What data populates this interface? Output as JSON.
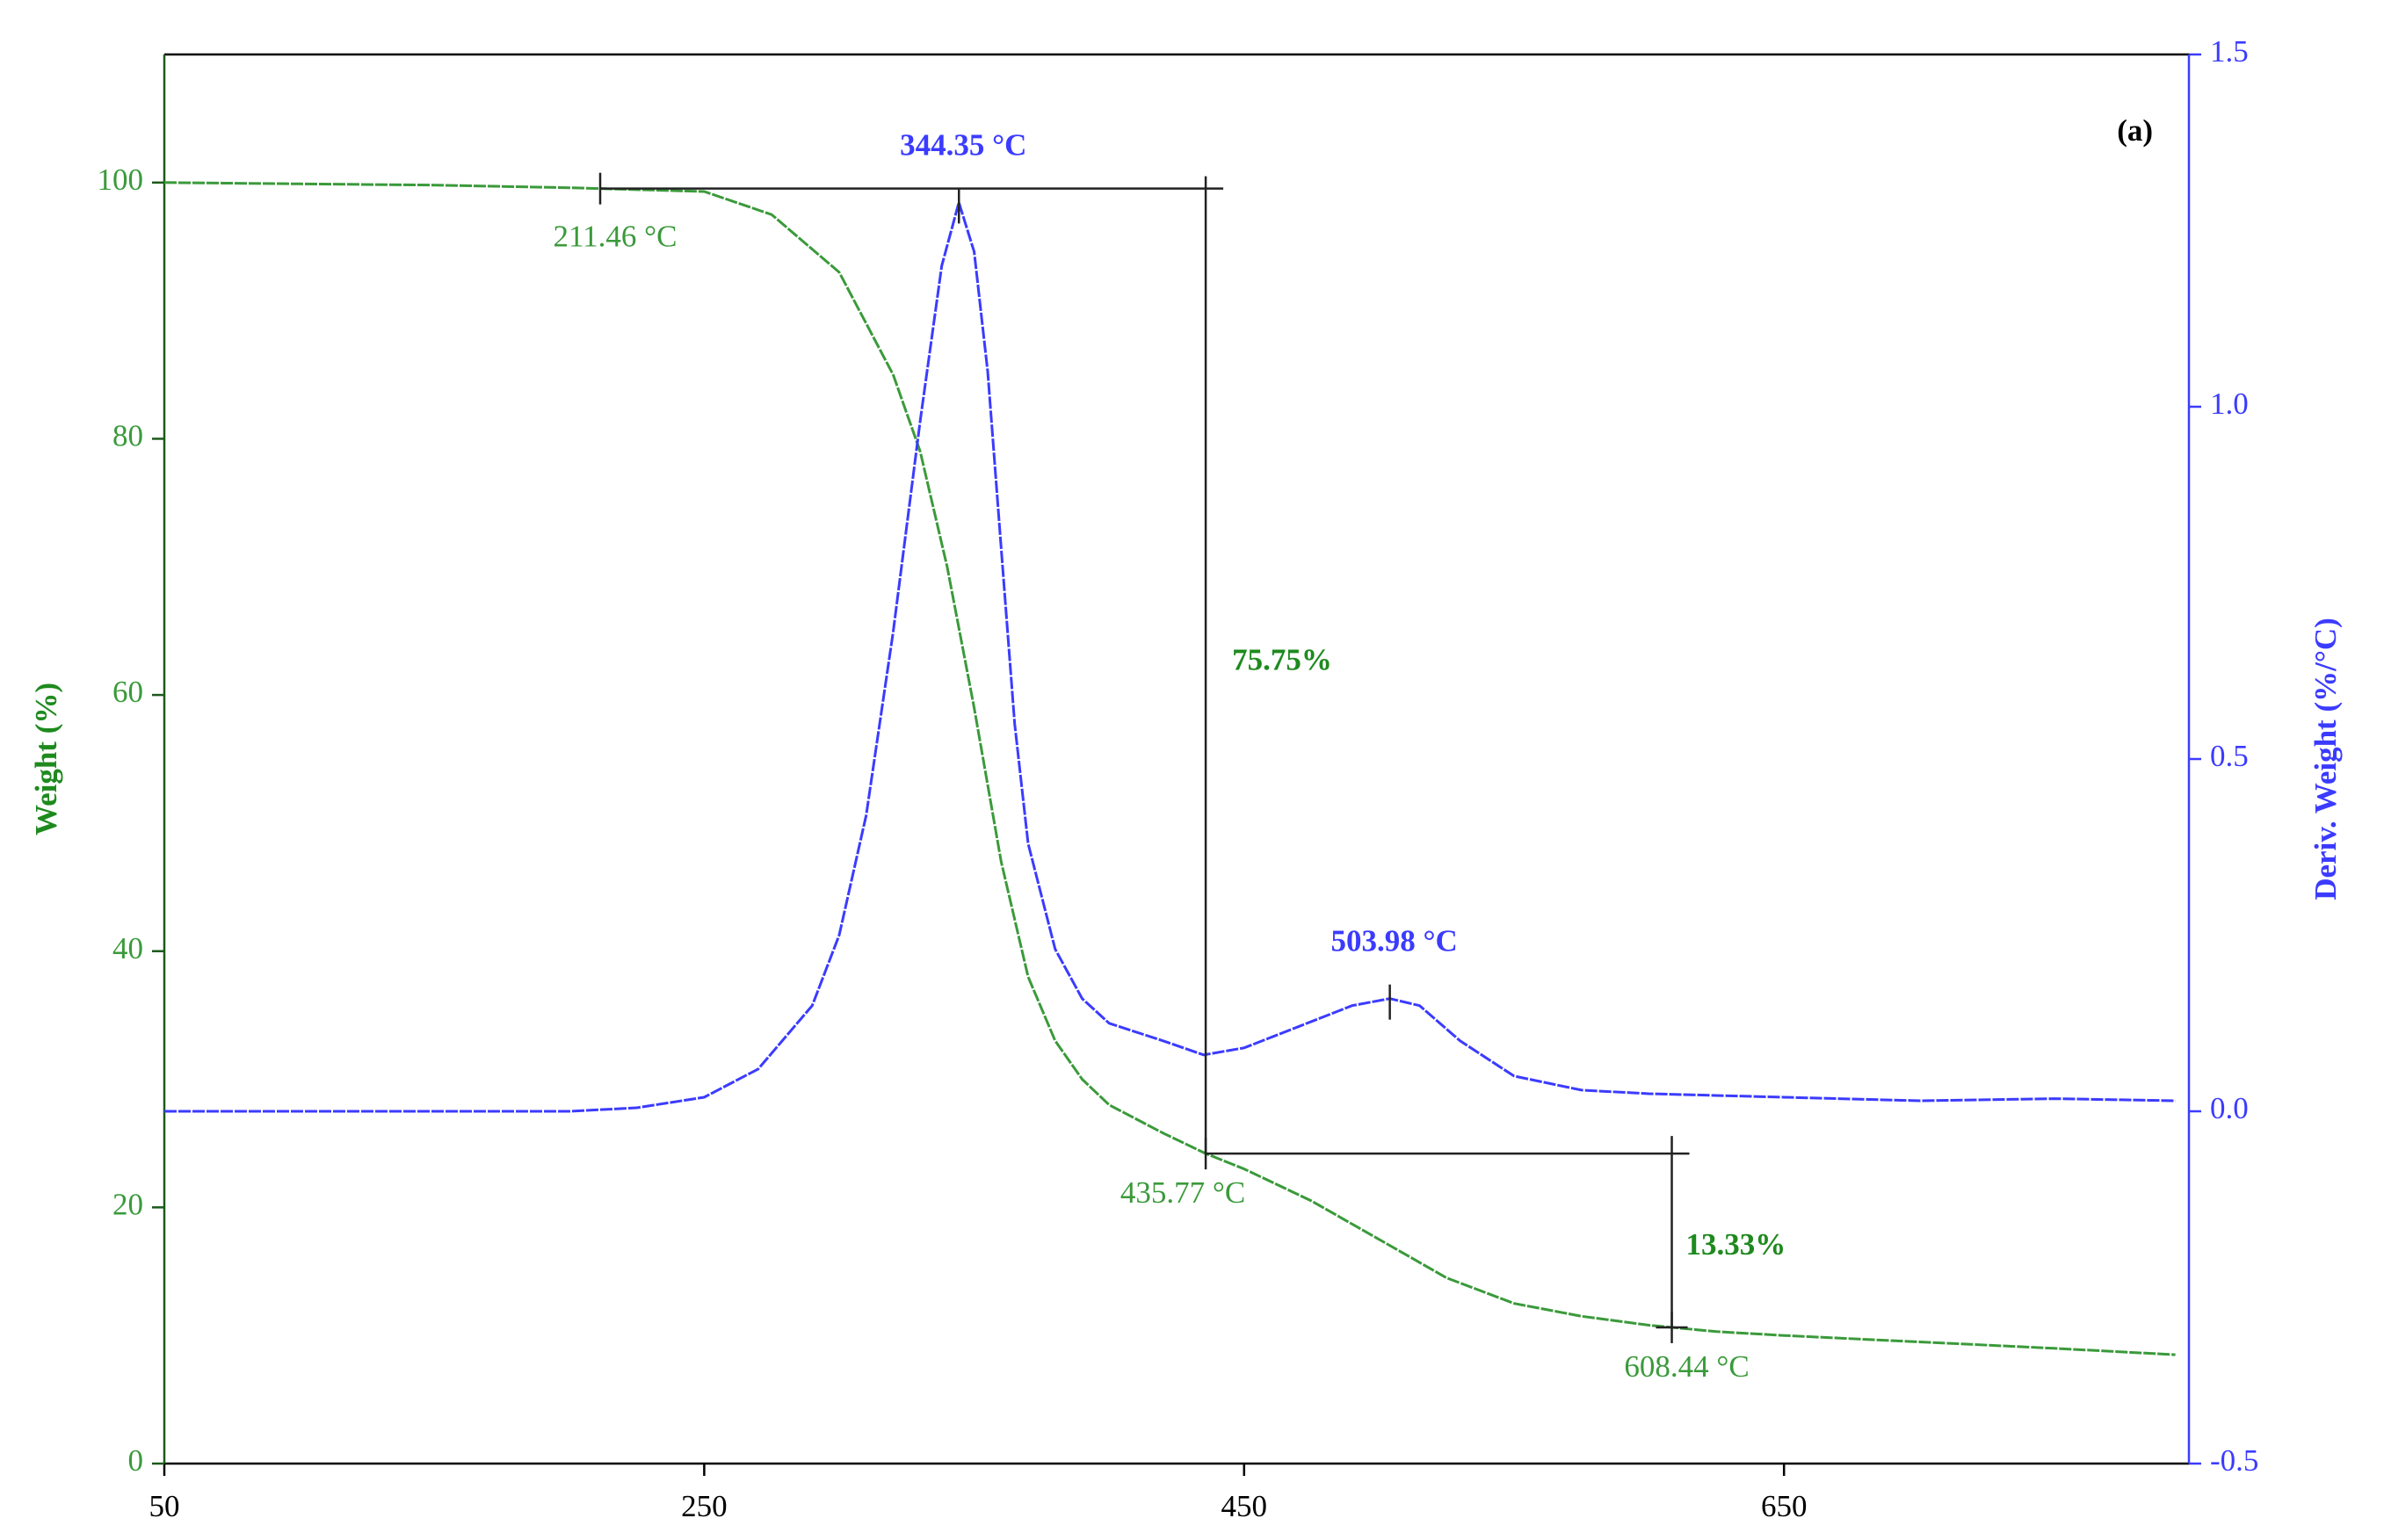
{
  "chart_data": {
    "type": "line",
    "title": "(a)",
    "x_label": null,
    "y_label": "Weight (%)",
    "y2_label": "Deriv. Weight (%/°C)",
    "xlim": [
      50,
      800
    ],
    "xticks": [
      50,
      250,
      450,
      650
    ],
    "ylim": [
      0,
      110
    ],
    "yticks": [
      0,
      20,
      40,
      60,
      80,
      100
    ],
    "y2lim": [
      -0.5,
      1.5
    ],
    "y2ticks": [
      -0.5,
      {
        "value": 0,
        "label": "0.0"
      },
      0.5,
      {
        "value": 1,
        "label": "1.0"
      },
      1.5
    ],
    "series": [
      {
        "name": "Weight",
        "color": "#3a9a3a",
        "axis": "y",
        "x": [
          50,
          100,
          150,
          200,
          250,
          275,
          300,
          320,
          330,
          340,
          350,
          360,
          370,
          380,
          390,
          400,
          420,
          435.77,
          450,
          475,
          500,
          525,
          550,
          575,
          600,
          625,
          650,
          700,
          750,
          795
        ],
        "values": [
          100,
          99.9,
          99.8,
          99.6,
          99.3,
          97.5,
          93,
          85,
          79,
          70,
          59,
          47,
          38,
          33,
          30,
          28,
          25.8,
          24.2,
          23,
          20.5,
          17.5,
          14.5,
          12.5,
          11.5,
          10.8,
          10.3,
          10,
          9.5,
          9,
          8.5
        ]
      },
      {
        "name": "Deriv. Weight",
        "color": "#3b3bff",
        "axis": "y2",
        "x": [
          50,
          100,
          150,
          200,
          225,
          250,
          270,
          290,
          300,
          310,
          320,
          330,
          338,
          344.35,
          350,
          355,
          360,
          365,
          370,
          380,
          390,
          400,
          420,
          435,
          450,
          470,
          490,
          503.98,
          515,
          530,
          550,
          575,
          600,
          650,
          700,
          750,
          795
        ],
        "values": [
          0.0,
          0.0,
          0.0,
          0.0,
          0.005,
          0.02,
          0.06,
          0.15,
          0.25,
          0.42,
          0.68,
          0.98,
          1.2,
          1.29,
          1.22,
          1.05,
          0.8,
          0.55,
          0.38,
          0.23,
          0.16,
          0.125,
          0.1,
          0.08,
          0.09,
          0.12,
          0.15,
          0.16,
          0.15,
          0.1,
          0.05,
          0.03,
          0.025,
          0.02,
          0.015,
          0.018,
          0.015
        ]
      }
    ],
    "weight_markers": {
      "x": [
        211.46,
        435.77,
        608.44
      ],
      "labels": [
        "211.46 °C",
        "435.77 °C",
        "608.44 °C"
      ]
    },
    "deriv_peaks": {
      "x": [
        344.35,
        503.98
      ],
      "labels": [
        "344.35 °C",
        "503.98 °C"
      ]
    },
    "weight_losses": {
      "values": [
        75.75,
        13.33
      ],
      "labels": [
        "75.75%",
        "13.33%"
      ]
    }
  }
}
